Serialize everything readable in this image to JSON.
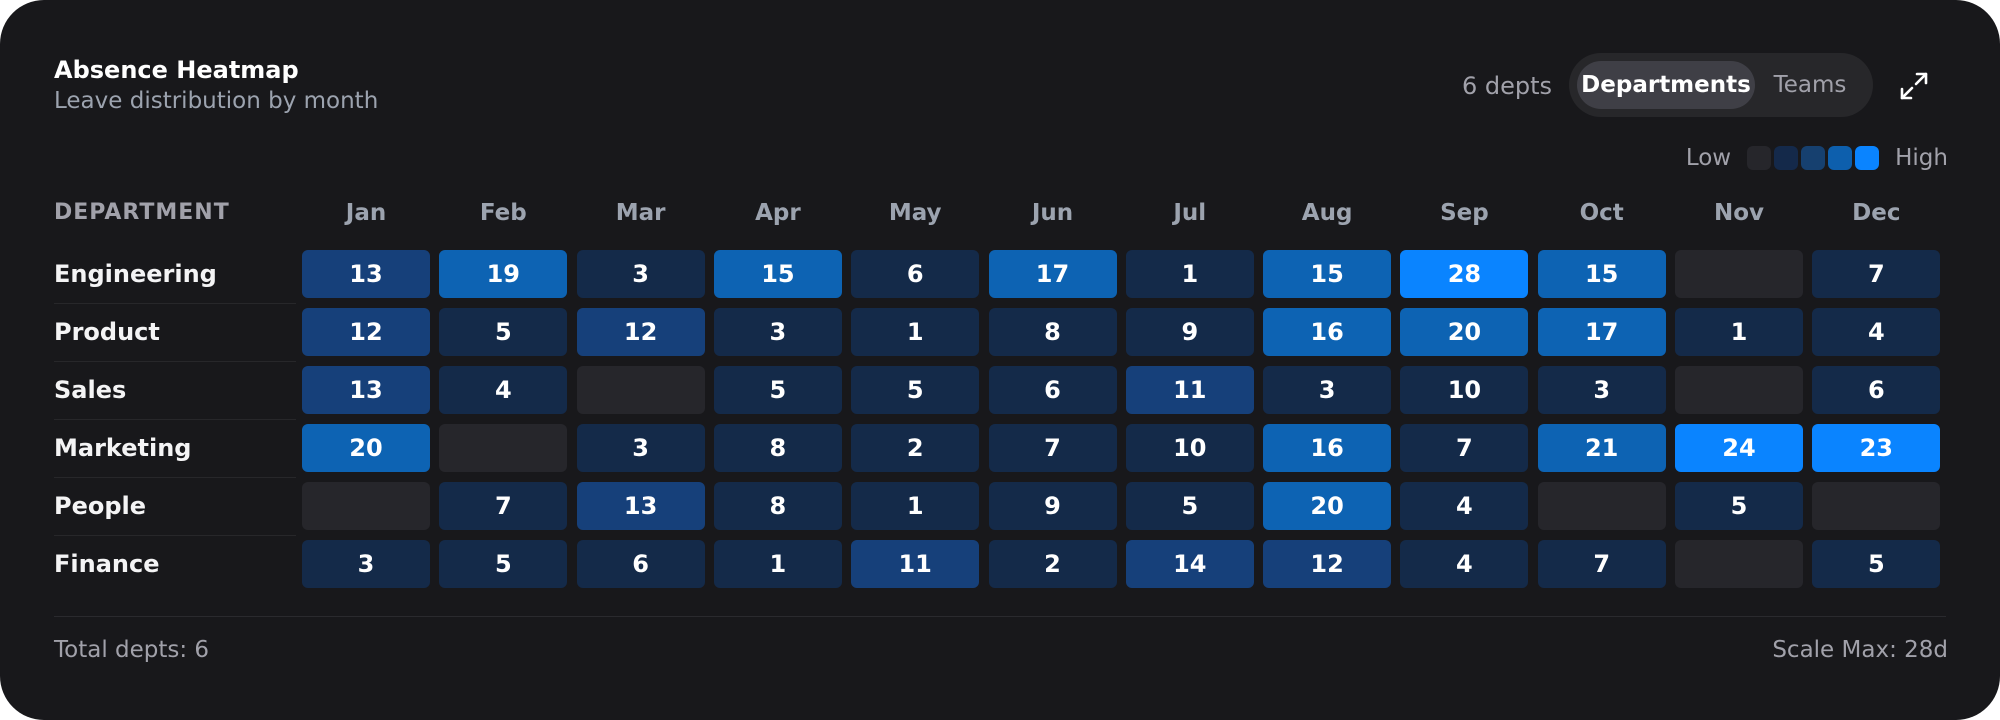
{
  "header": {
    "title": "Absence Heatmap",
    "subtitle": "Leave distribution by month",
    "count_label": "6 depts"
  },
  "toggle": {
    "options": [
      "Departments",
      "Teams"
    ],
    "selected": "Departments"
  },
  "expand_icon": "expand-arrows-icon",
  "legend": {
    "low_label": "Low",
    "high_label": "High",
    "colors": [
      "#26262b",
      "#14294a",
      "#16406f",
      "#0d5fad",
      "#0a84ff"
    ]
  },
  "table": {
    "dept_header": "DEPARTMENT",
    "months": [
      "Jan",
      "Feb",
      "Mar",
      "Apr",
      "May",
      "Jun",
      "Jul",
      "Aug",
      "Sep",
      "Oct",
      "Nov",
      "Dec"
    ],
    "rows": [
      {
        "name": "Engineering",
        "values": [
          13,
          19,
          3,
          15,
          6,
          17,
          1,
          15,
          28,
          15,
          null,
          7
        ]
      },
      {
        "name": "Product",
        "values": [
          12,
          5,
          12,
          3,
          1,
          8,
          9,
          16,
          20,
          17,
          1,
          4
        ]
      },
      {
        "name": "Sales",
        "values": [
          13,
          4,
          null,
          5,
          5,
          6,
          11,
          3,
          10,
          3,
          null,
          6
        ]
      },
      {
        "name": "Marketing",
        "values": [
          20,
          null,
          3,
          8,
          2,
          7,
          10,
          16,
          7,
          21,
          24,
          23
        ]
      },
      {
        "name": "People",
        "values": [
          null,
          7,
          13,
          8,
          1,
          9,
          5,
          20,
          4,
          null,
          5,
          null
        ]
      },
      {
        "name": "Finance",
        "values": [
          3,
          5,
          6,
          1,
          11,
          2,
          14,
          12,
          4,
          7,
          null,
          5
        ]
      }
    ],
    "scale_max": 28
  },
  "footer": {
    "left": "Total depts: 6",
    "right": "Scale Max: 28d"
  },
  "chart_data": {
    "type": "heatmap",
    "title": "Absence Heatmap",
    "subtitle": "Leave distribution by month",
    "x": [
      "Jan",
      "Feb",
      "Mar",
      "Apr",
      "May",
      "Jun",
      "Jul",
      "Aug",
      "Sep",
      "Oct",
      "Nov",
      "Dec"
    ],
    "y": [
      "Engineering",
      "Product",
      "Sales",
      "Marketing",
      "People",
      "Finance"
    ],
    "values": [
      [
        13,
        19,
        3,
        15,
        6,
        17,
        1,
        15,
        28,
        15,
        null,
        7
      ],
      [
        12,
        5,
        12,
        3,
        1,
        8,
        9,
        16,
        20,
        17,
        1,
        4
      ],
      [
        13,
        4,
        null,
        5,
        5,
        6,
        11,
        3,
        10,
        3,
        null,
        6
      ],
      [
        20,
        null,
        3,
        8,
        2,
        7,
        10,
        16,
        7,
        21,
        24,
        23
      ],
      [
        null,
        7,
        13,
        8,
        1,
        9,
        5,
        20,
        4,
        null,
        5,
        null
      ],
      [
        3,
        5,
        6,
        1,
        11,
        2,
        14,
        12,
        4,
        7,
        null,
        5
      ]
    ],
    "scale": [
      0,
      28
    ],
    "xlabel": "",
    "ylabel": "DEPARTMENT"
  }
}
